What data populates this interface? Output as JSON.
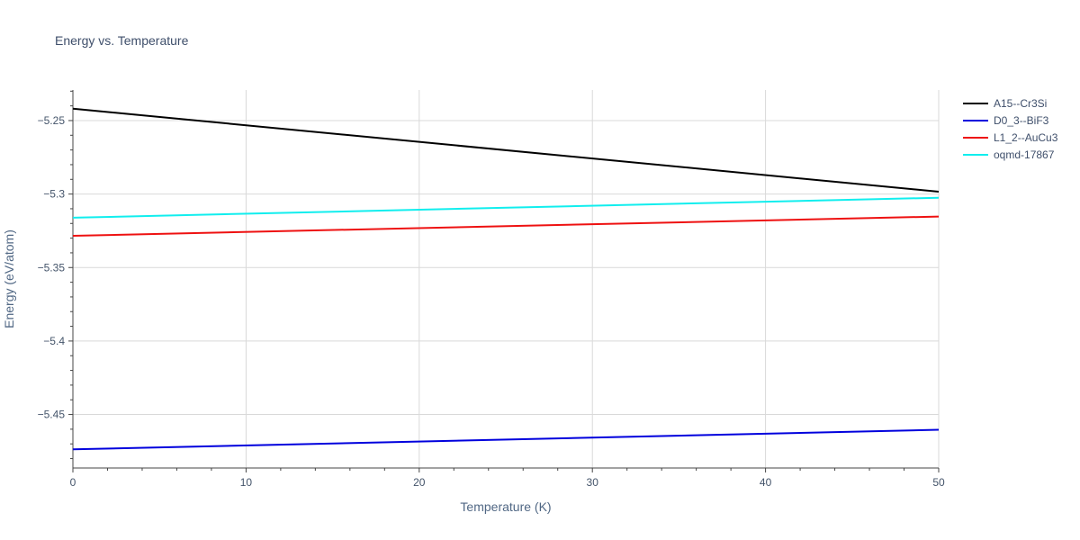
{
  "chart_data": {
    "type": "line",
    "title": "Energy vs. Temperature",
    "xlabel": "Temperature (K)",
    "ylabel": "Energy (eV/atom)",
    "xlim": [
      0,
      50
    ],
    "ylim": [
      -5.4864,
      -5.2292
    ],
    "x_ticks": [
      0,
      10,
      20,
      30,
      40,
      50
    ],
    "x_tick_labels": [
      "0",
      "10",
      "20",
      "30",
      "40",
      "50"
    ],
    "y_ticks": [
      -5.25,
      -5.3,
      -5.35,
      -5.4,
      -5.45
    ],
    "y_tick_labels": [
      "−5.25",
      "−5.3",
      "−5.35",
      "−5.4",
      "−5.45"
    ],
    "grid": true,
    "legend_position": "top-right",
    "series": [
      {
        "name": "A15--Cr3Si",
        "color": "#000000",
        "x": [
          0,
          50
        ],
        "y": [
          -5.2419,
          -5.2984
        ]
      },
      {
        "name": "D0_3--BiF3",
        "color": "#0000dd",
        "x": [
          0,
          50
        ],
        "y": [
          -5.4737,
          -5.4604
        ]
      },
      {
        "name": "L1_2--AuCu3",
        "color": "#ee1111",
        "x": [
          0,
          50
        ],
        "y": [
          -5.3284,
          -5.3153
        ]
      },
      {
        "name": "oqmd-17867",
        "color": "#11eeee",
        "x": [
          0,
          50
        ],
        "y": [
          -5.3161,
          -5.3025
        ]
      }
    ]
  }
}
